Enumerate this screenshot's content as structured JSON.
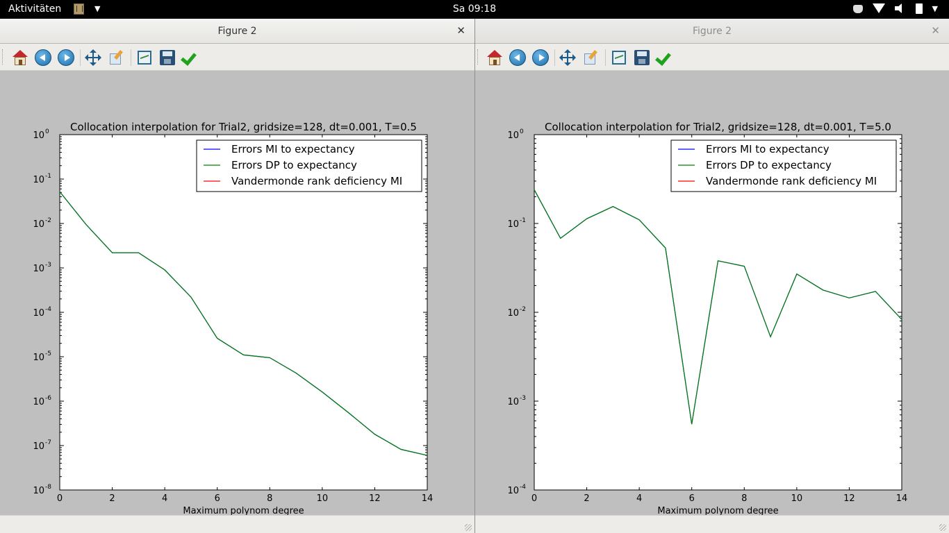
{
  "topbar": {
    "activities": "Aktivitäten",
    "clock": "Sa 09:18",
    "tray_icons": [
      "coffee-icon",
      "wifi-icon",
      "volume-icon",
      "battery-icon"
    ]
  },
  "windows": [
    {
      "title": "Figure 2",
      "toolbar_buttons": [
        "home-icon",
        "back-icon",
        "forward-icon",
        "pan-icon",
        "zoom-icon",
        "subplots-icon",
        "save-icon",
        "check-icon"
      ],
      "chart_data": {
        "type": "line",
        "title": "Collocation interpolation for Trial2, gridsize=128, dt=0.001, T=0.5",
        "xlabel": "Maximum polynom degree",
        "ylabel": "",
        "xlim": [
          0,
          14
        ],
        "ylim": [
          1e-08,
          1
        ],
        "yscale": "log",
        "xticks": [
          "0",
          "2",
          "4",
          "6",
          "8",
          "10",
          "12",
          "14"
        ],
        "yticks": [
          {
            "base": "10",
            "exp": "0"
          },
          {
            "base": "10",
            "exp": "-1"
          },
          {
            "base": "10",
            "exp": "-2"
          },
          {
            "base": "10",
            "exp": "-3"
          },
          {
            "base": "10",
            "exp": "-4"
          },
          {
            "base": "10",
            "exp": "-5"
          },
          {
            "base": "10",
            "exp": "-6"
          },
          {
            "base": "10",
            "exp": "-7"
          },
          {
            "base": "10",
            "exp": "-8"
          }
        ],
        "legend_position": "top-right",
        "legend": [
          {
            "name": "Errors MI to expectancy",
            "color": "#0000ff"
          },
          {
            "name": "Errors DP to expectancy",
            "color": "#008000"
          },
          {
            "name": "Vandermonde rank deficiency MI",
            "color": "#ff0000"
          }
        ],
        "x": [
          0,
          1,
          2,
          3,
          4,
          5,
          6,
          7,
          8,
          9,
          10,
          11,
          12,
          13,
          14
        ],
        "series": [
          {
            "name": "Errors MI to expectancy",
            "color": "#0000ff",
            "values": [
              0.052,
              0.0095,
              0.0022,
              0.0022,
              0.0009,
              0.00022,
              2.6e-05,
              1.1e-05,
              9.5e-06,
              4.3e-06,
              1.6e-06,
              5.5e-07,
              1.8e-07,
              8.2e-08,
              6e-08
            ]
          },
          {
            "name": "Errors DP to expectancy",
            "color": "#008000",
            "values": [
              0.052,
              0.0095,
              0.0022,
              0.0022,
              0.0009,
              0.00022,
              2.6e-05,
              1.1e-05,
              9.5e-06,
              4.3e-06,
              1.6e-06,
              5.5e-07,
              1.8e-07,
              8.2e-08,
              6e-08
            ]
          }
        ]
      }
    },
    {
      "title": "Figure 2",
      "toolbar_buttons": [
        "home-icon",
        "back-icon",
        "forward-icon",
        "pan-icon",
        "zoom-icon",
        "subplots-icon",
        "save-icon",
        "check-icon"
      ],
      "chart_data": {
        "type": "line",
        "title": "Collocation interpolation for Trial2, gridsize=128, dt=0.001, T=5.0",
        "xlabel": "Maximum polynom degree",
        "ylabel": "",
        "xlim": [
          0,
          14
        ],
        "ylim": [
          0.0001,
          1
        ],
        "yscale": "log",
        "xticks": [
          "0",
          "2",
          "4",
          "6",
          "8",
          "10",
          "12",
          "14"
        ],
        "yticks": [
          {
            "base": "10",
            "exp": "0"
          },
          {
            "base": "10",
            "exp": "-1"
          },
          {
            "base": "10",
            "exp": "-2"
          },
          {
            "base": "10",
            "exp": "-3"
          },
          {
            "base": "10",
            "exp": "-4"
          }
        ],
        "legend_position": "top-right",
        "legend": [
          {
            "name": "Errors MI to expectancy",
            "color": "#0000ff"
          },
          {
            "name": "Errors DP to expectancy",
            "color": "#008000"
          },
          {
            "name": "Vandermonde rank deficiency MI",
            "color": "#ff0000"
          }
        ],
        "x": [
          0,
          1,
          2,
          3,
          4,
          5,
          6,
          7,
          8,
          9,
          10,
          11,
          12,
          13,
          14
        ],
        "series": [
          {
            "name": "Errors MI to expectancy",
            "color": "#0000ff",
            "values": [
              0.24,
              0.068,
              0.113,
              0.155,
              0.11,
              0.053,
              0.00055,
              0.038,
              0.033,
              0.0053,
              0.027,
              0.0178,
              0.0145,
              0.0172,
              0.0083
            ]
          },
          {
            "name": "Errors DP to expectancy",
            "color": "#008000",
            "values": [
              0.24,
              0.068,
              0.113,
              0.155,
              0.11,
              0.053,
              0.00055,
              0.038,
              0.033,
              0.0053,
              0.027,
              0.0178,
              0.0145,
              0.0172,
              0.0083
            ]
          }
        ]
      }
    }
  ]
}
